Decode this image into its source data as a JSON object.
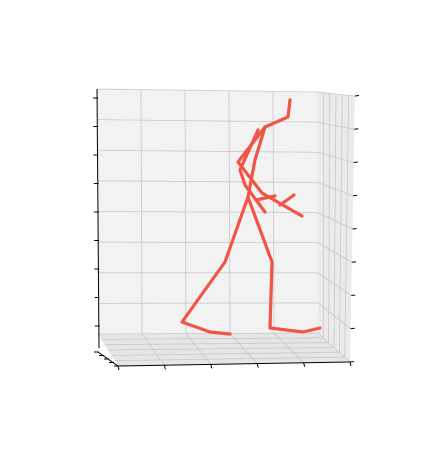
{
  "chart_data": {
    "type": "3d-line",
    "title": "",
    "xlabel": "",
    "ylabel": "",
    "zlabel": "",
    "grid": true,
    "tick_labels_visible": false,
    "series_color": "#f05545",
    "pane_color": "#f2f2f2",
    "grid_color": "#c8c8c8",
    "axis_color": "#000000",
    "series": [
      {
        "name": "",
        "segments": [
          {
            "label": "head",
            "points": [
              [
                290,
                100
              ],
              [
                288,
                117
              ],
              [
                265,
                127
              ]
            ]
          },
          {
            "label": "spine",
            "points": [
              [
                265,
                127
              ],
              [
                255,
                160
              ],
              [
                248,
                197
              ]
            ]
          },
          {
            "label": "right-arm",
            "points": [
              [
                265,
                127
              ],
              [
                238,
                162
              ],
              [
                262,
                193
              ],
              [
                302,
                216
              ]
            ]
          },
          {
            "label": "right-hand",
            "points": [
              [
                280,
                205
              ],
              [
                294,
                195
              ]
            ]
          },
          {
            "label": "left-arm",
            "points": [
              [
                258,
                130
              ],
              [
                240,
                170
              ],
              [
                245,
                185
              ],
              [
                265,
                212
              ],
              [
                256,
                200
              ],
              [
                275,
                196
              ]
            ]
          },
          {
            "label": "left-leg",
            "points": [
              [
                248,
                197
              ],
              [
                225,
                262
              ],
              [
                182,
                322
              ],
              [
                210,
                332
              ],
              [
                230,
                334
              ]
            ]
          },
          {
            "label": "right-leg",
            "points": [
              [
                248,
                197
              ],
              [
                272,
                262
              ],
              [
                270,
                328
              ],
              [
                303,
                332
              ],
              [
                320,
                328
              ]
            ]
          }
        ]
      }
    ]
  }
}
